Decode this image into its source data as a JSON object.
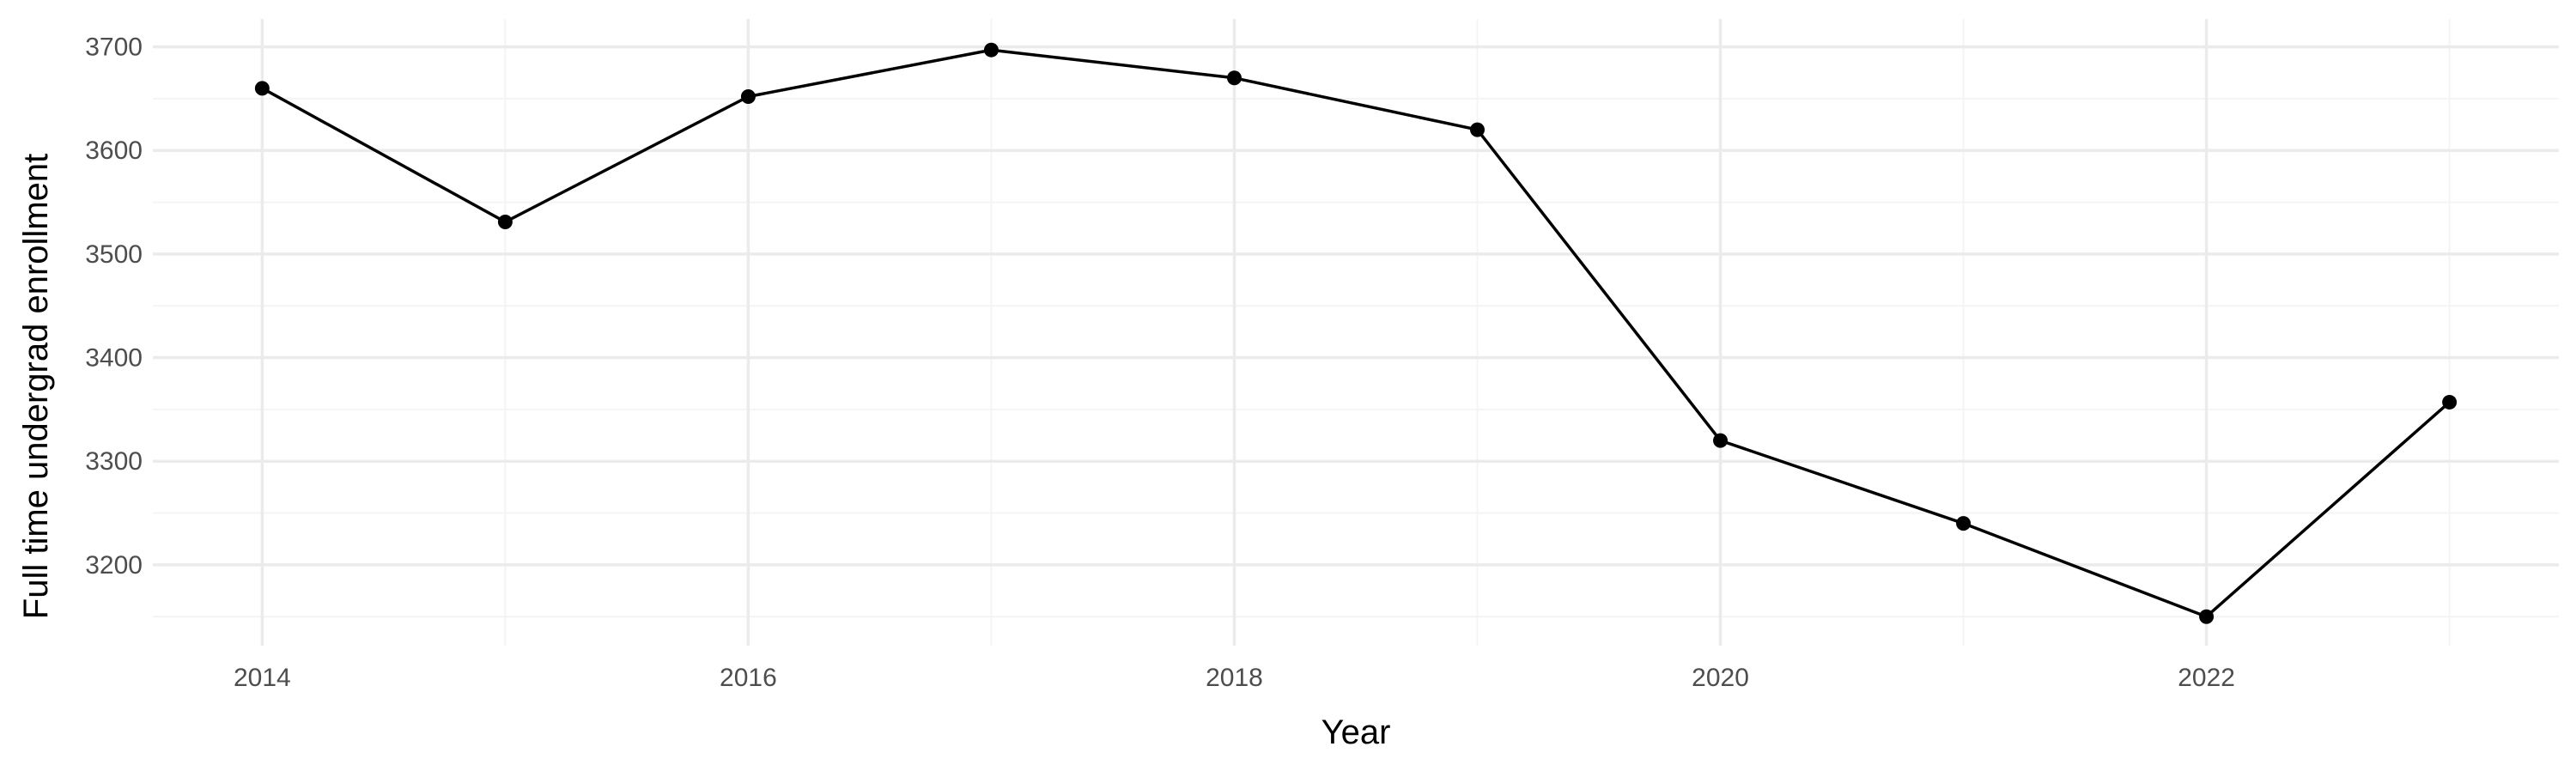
{
  "chart_data": {
    "type": "line",
    "title": "",
    "xlabel": "Year",
    "ylabel": "Full time undergrad enrollment",
    "x": [
      2014,
      2015,
      2016,
      2017,
      2018,
      2019,
      2020,
      2021,
      2022,
      2023
    ],
    "series": [
      {
        "values": [
          3660,
          3531,
          3652,
          3697,
          3670,
          3620,
          3320,
          3240,
          3150,
          3357
        ]
      }
    ],
    "xlim": [
      2013.55,
      2023.45
    ],
    "ylim": [
      3122,
      3727
    ],
    "x_ticks": [
      2014,
      2016,
      2018,
      2020,
      2022
    ],
    "x_minor_ticks": [
      2015,
      2017,
      2019,
      2021,
      2023
    ],
    "y_ticks": [
      3200,
      3300,
      3400,
      3500,
      3600,
      3700
    ],
    "y_minor_ticks": [
      3150,
      3250,
      3350,
      3450,
      3550,
      3650
    ],
    "x_tick_labels": [
      "2014",
      "2016",
      "2018",
      "2020",
      "2022"
    ],
    "y_tick_labels": [
      "3200",
      "3300",
      "3400",
      "3500",
      "3600",
      "3700"
    ],
    "grid": true,
    "legend": "none",
    "colors": {
      "line": "#000000",
      "point": "#000000",
      "grid_major": "#ebebeb",
      "grid_minor": "#f4f4f4",
      "tick_text": "#4d4d4d",
      "background": "#ffffff"
    }
  }
}
